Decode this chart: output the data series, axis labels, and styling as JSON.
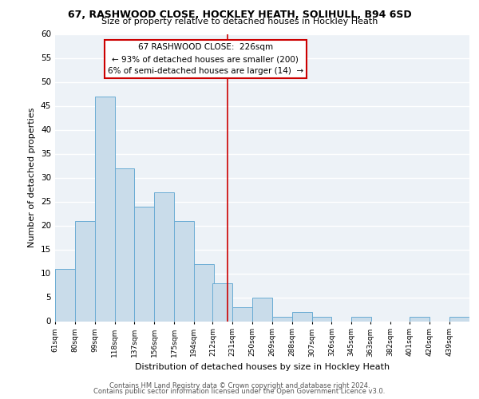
{
  "title1": "67, RASHWOOD CLOSE, HOCKLEY HEATH, SOLIHULL, B94 6SD",
  "title2": "Size of property relative to detached houses in Hockley Heath",
  "xlabel": "Distribution of detached houses by size in Hockley Heath",
  "ylabel": "Number of detached properties",
  "bin_labels": [
    "61sqm",
    "80sqm",
    "99sqm",
    "118sqm",
    "137sqm",
    "156sqm",
    "175sqm",
    "194sqm",
    "212sqm",
    "231sqm",
    "250sqm",
    "269sqm",
    "288sqm",
    "307sqm",
    "326sqm",
    "345sqm",
    "363sqm",
    "382sqm",
    "401sqm",
    "420sqm",
    "439sqm"
  ],
  "bin_edges": [
    61,
    80,
    99,
    118,
    137,
    156,
    175,
    194,
    212,
    231,
    250,
    269,
    288,
    307,
    326,
    345,
    363,
    382,
    401,
    420,
    439
  ],
  "bar_heights": [
    11,
    21,
    47,
    32,
    24,
    27,
    21,
    12,
    8,
    3,
    5,
    1,
    2,
    1,
    0,
    1,
    0,
    0,
    1,
    0,
    1
  ],
  "bar_color": "#c9dcea",
  "bar_edge_color": "#6aacd4",
  "vline_x": 226,
  "vline_color": "#cc0000",
  "annotation_line1": "67 RASHWOOD CLOSE:  226sqm",
  "annotation_line2": "← 93% of detached houses are smaller (200)",
  "annotation_line3": "6% of semi-detached houses are larger (14)  →",
  "annotation_box_edge": "#cc0000",
  "ylim": [
    0,
    60
  ],
  "yticks": [
    0,
    5,
    10,
    15,
    20,
    25,
    30,
    35,
    40,
    45,
    50,
    55,
    60
  ],
  "footer1": "Contains HM Land Registry data © Crown copyright and database right 2024.",
  "footer2": "Contains public sector information licensed under the Open Government Licence v3.0.",
  "bg_color": "#edf2f7",
  "grid_color": "white"
}
